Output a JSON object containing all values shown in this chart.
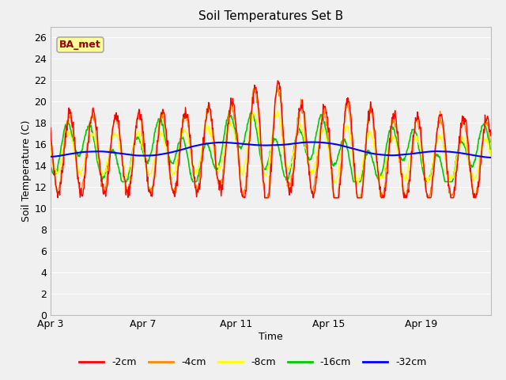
{
  "title": "Soil Temperatures Set B",
  "xlabel": "Time",
  "ylabel": "Soil Temperature (C)",
  "annotation": "BA_met",
  "ylim": [
    0,
    27
  ],
  "yticks": [
    0,
    2,
    4,
    6,
    8,
    10,
    12,
    14,
    16,
    18,
    20,
    22,
    24,
    26
  ],
  "xtick_positions": [
    0,
    4,
    8,
    12,
    16
  ],
  "xtick_labels": [
    "Apr 3",
    "Apr 7",
    "Apr 11",
    "Apr 15",
    "Apr 19"
  ],
  "n_days": 19,
  "colors": {
    "-2cm": "#ff0000",
    "-4cm": "#ff8800",
    "-8cm": "#ffff00",
    "-16cm": "#00cc00",
    "-32cm": "#0000ff"
  },
  "legend_labels": [
    "-2cm",
    "-4cm",
    "-8cm",
    "-16cm",
    "-32cm"
  ],
  "bg_color": "#f0f0f0",
  "grid_color": "#ffffff",
  "title_fontsize": 11,
  "label_fontsize": 9,
  "tick_fontsize": 9
}
